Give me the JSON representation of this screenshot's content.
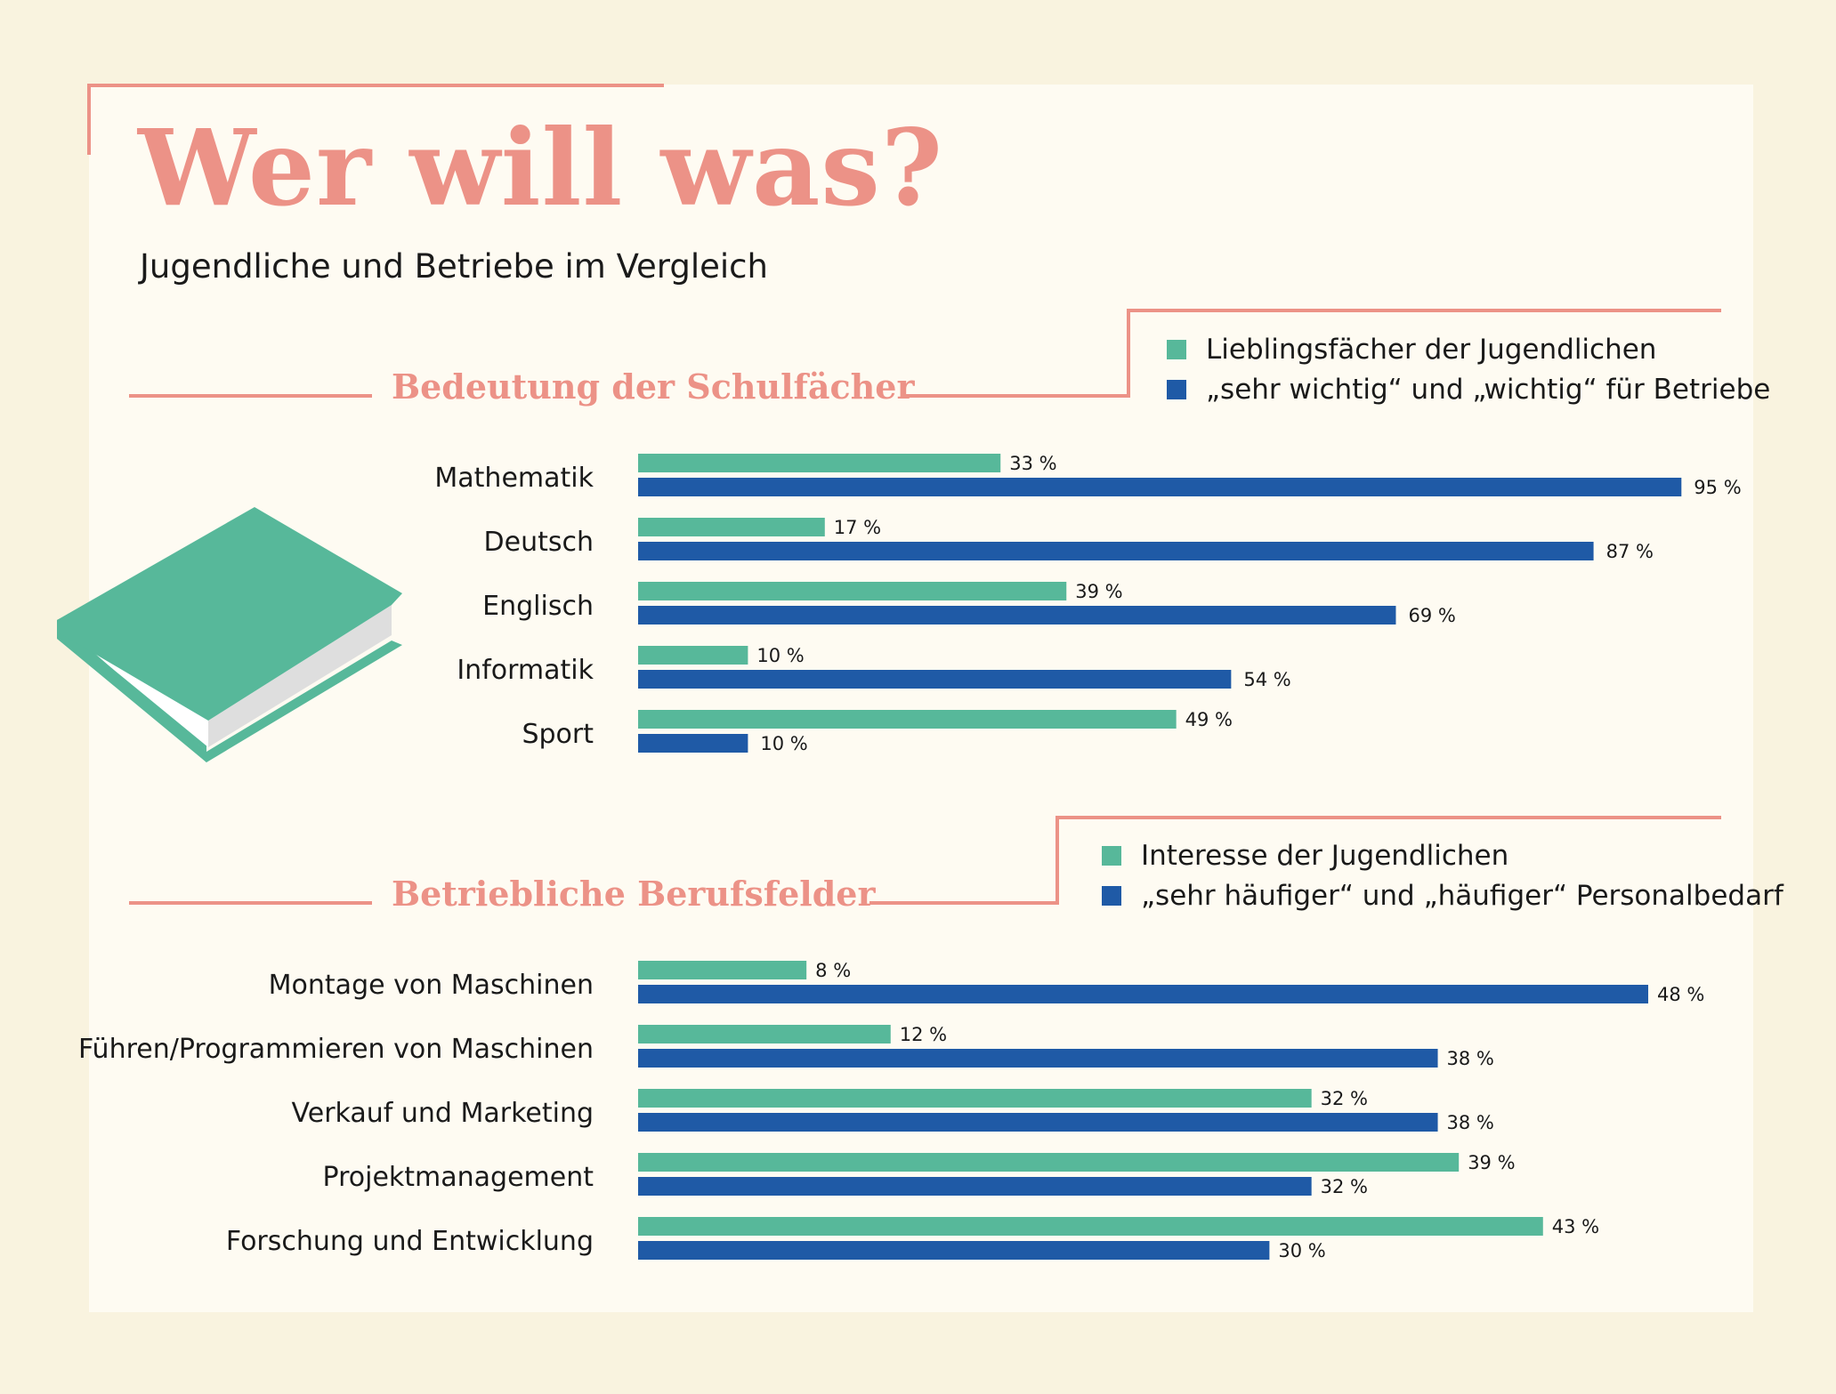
{
  "title": "Wer will was?",
  "subtitle": "Jugendliche und Betriebe im Vergleich",
  "colors": {
    "green": "#57b89a",
    "blue": "#1f5aa6",
    "pink": "#ec9287",
    "book_green": "#57b89a",
    "book_pages": "#dedede"
  },
  "chart_data": [
    {
      "type": "bar",
      "orientation": "horizontal",
      "title": "Bedeutung der Schulfächer",
      "categories": [
        "Mathematik",
        "Deutsch",
        "Englisch",
        "Informatik",
        "Sport"
      ],
      "series": [
        {
          "name": "Lieblingsfächer der Jugendlichen",
          "color": "#57b89a",
          "values": [
            33,
            17,
            39,
            10,
            49
          ],
          "labels": [
            "33 %",
            "17 %",
            "39 %",
            "10 %",
            "49 %"
          ]
        },
        {
          "name": "„sehr wichtig“ und „wichtig“ für Betriebe",
          "color": "#1f5aa6",
          "values": [
            95,
            87,
            69,
            54,
            10
          ],
          "labels": [
            "95 %",
            "87 %",
            "69 %",
            "54 %",
            "10 %"
          ]
        }
      ],
      "xlim": [
        0,
        100
      ]
    },
    {
      "type": "bar",
      "orientation": "horizontal",
      "title": "Betriebliche Berufsfelder",
      "categories": [
        "Montage von Maschinen",
        "Führen/Programmieren von Maschinen",
        "Verkauf und Marketing",
        "Projektmanagement",
        "Forschung und Entwicklung"
      ],
      "series": [
        {
          "name": "Interesse der Jugendlichen",
          "color": "#57b89a",
          "values": [
            8,
            12,
            32,
            39,
            43
          ],
          "labels": [
            "8 %",
            "12 %",
            "32 %",
            "39 %",
            "43 %"
          ]
        },
        {
          "name": "„sehr häufiger“ und „häufiger“ Personalbedarf",
          "color": "#1f5aa6",
          "values": [
            48,
            38,
            38,
            32,
            30
          ],
          "labels": [
            "48 %",
            "38 %",
            "38 %",
            "32 %",
            "30 %"
          ]
        }
      ],
      "xlim": [
        0,
        48
      ]
    }
  ]
}
